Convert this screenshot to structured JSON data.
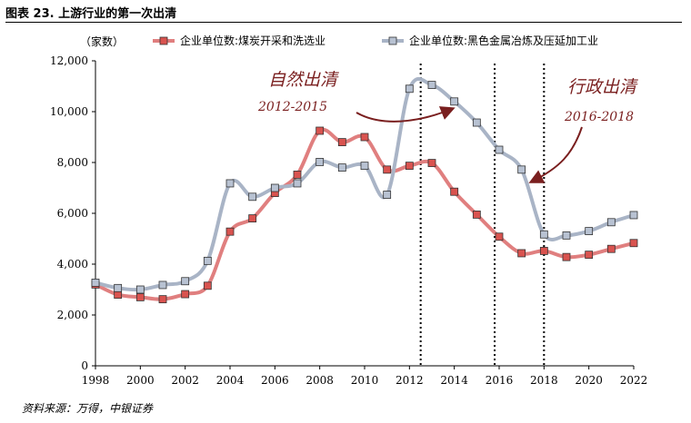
{
  "figure": {
    "title": "图表 23. 上游行业的第一次出清",
    "source": "资料来源：万得，中银证券"
  },
  "chart_data": {
    "type": "line",
    "unit_label": "（家数）",
    "x": [
      1998,
      1999,
      2000,
      2001,
      2002,
      2003,
      2004,
      2005,
      2006,
      2007,
      2008,
      2009,
      2010,
      2011,
      2012,
      2013,
      2014,
      2015,
      2016,
      2017,
      2018,
      2019,
      2020,
      2021,
      2022
    ],
    "x_ticks": [
      1998,
      2000,
      2002,
      2004,
      2006,
      2008,
      2010,
      2012,
      2014,
      2016,
      2018,
      2020,
      2022
    ],
    "y_ticks": [
      0,
      2000,
      4000,
      6000,
      8000,
      10000,
      12000
    ],
    "y_tick_labels": [
      "0",
      "2,000",
      "4,000",
      "6,000",
      "8,000",
      "10,000",
      "12,000"
    ],
    "xlim": [
      1998,
      2022
    ],
    "ylim": [
      0,
      12000
    ],
    "grid": false,
    "legend_position": "top",
    "series": [
      {
        "name": "企业单位数:煤炭开采和洗选业",
        "color": "#e07f7f",
        "marker_color": "#d9534f",
        "values": [
          3200,
          2800,
          2700,
          2620,
          2820,
          3150,
          5280,
          5800,
          6800,
          7520,
          9250,
          8800,
          9000,
          7720,
          7870,
          7980,
          6850,
          5950,
          5080,
          4430,
          4520,
          4280,
          4370,
          4600,
          4830
        ]
      },
      {
        "name": "企业单位数:黑色金属冶炼及压延加工业",
        "color": "#a9b4c6",
        "marker_color": "#b8c2d2",
        "values": [
          3270,
          3060,
          3000,
          3180,
          3330,
          4130,
          7180,
          6650,
          7000,
          7180,
          8020,
          7800,
          7870,
          6730,
          10900,
          11050,
          10400,
          9570,
          8500,
          7720,
          5170,
          5130,
          5300,
          5650,
          5930
        ]
      }
    ],
    "vlines": [
      2012.5,
      2015.8,
      2018
    ],
    "annotations": [
      {
        "text": "自然出清",
        "years": "2012-2015"
      },
      {
        "text": "行政出清",
        "years": "2016-2018"
      }
    ]
  }
}
